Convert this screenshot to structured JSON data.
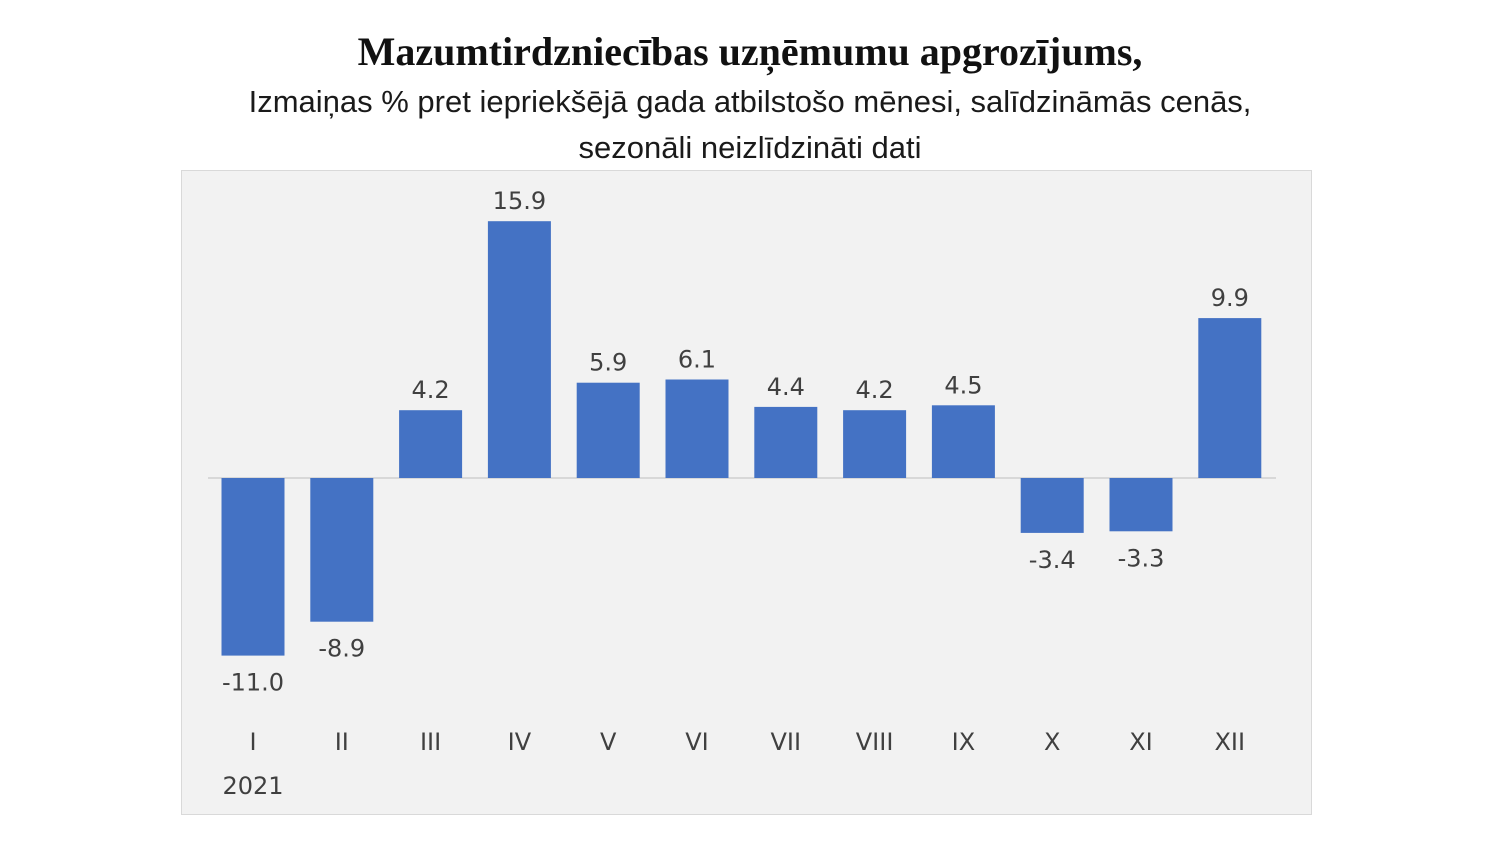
{
  "chart_data": {
    "type": "bar",
    "title": "Mazumtirdzniecības uzņēmumu apgrozījums,",
    "subtitle_lines": [
      "Izmaiņas % pret iepriekšējā gada atbilstošo mēnesi, salīdzināmās cenās,",
      "sezonāli neizlīdzināti dati"
    ],
    "categories": [
      "I",
      "II",
      "III",
      "IV",
      "V",
      "VI",
      "VII",
      "VIII",
      "IX",
      "X",
      "XI",
      "XII"
    ],
    "year_label": "2021",
    "values": [
      -11.0,
      -8.9,
      4.2,
      15.9,
      5.9,
      6.1,
      4.4,
      4.2,
      4.5,
      -3.4,
      -3.3,
      9.9
    ],
    "value_labels": [
      "-11.0",
      "-8.9",
      "4.2",
      "15.9",
      "5.9",
      "6.1",
      "4.4",
      "4.2",
      "4.5",
      "-3.4",
      "-3.3",
      "9.9"
    ],
    "xlabel": "",
    "ylabel": "",
    "ylim": [
      -11.0,
      15.9
    ],
    "grid": false,
    "legend": "none",
    "bar_color": "#4472c4",
    "background_color": "#f2f2f2"
  }
}
